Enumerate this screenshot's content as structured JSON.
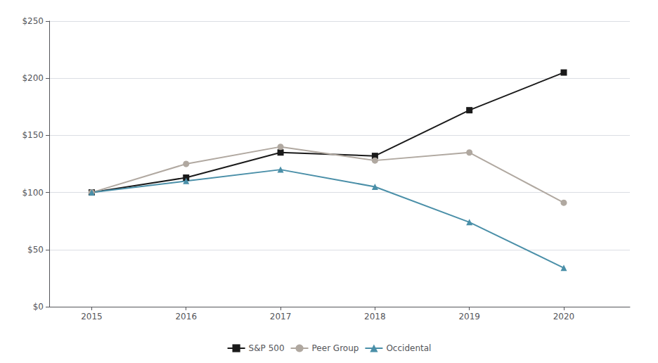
{
  "chart_data": {
    "type": "line",
    "x": [
      2015,
      2016,
      2017,
      2018,
      2019,
      2020
    ],
    "xlim": [
      2014.55,
      2020.7
    ],
    "xticks": [
      2015,
      2016,
      2017,
      2018,
      2019,
      2020
    ],
    "ylim": [
      0,
      250
    ],
    "yticks": [
      {
        "value": 0,
        "label": "$0"
      },
      {
        "value": 50,
        "label": "$50"
      },
      {
        "value": 100,
        "label": "$100"
      },
      {
        "value": 150,
        "label": "$150"
      },
      {
        "value": 200,
        "label": "$200"
      },
      {
        "value": 250,
        "label": "$250"
      }
    ],
    "grid": true,
    "legend": "bottom",
    "series": [
      {
        "name": "S&P 500",
        "color": "#1a1a1a",
        "marker": "square",
        "values": [
          100,
          113,
          135,
          132,
          172,
          205
        ]
      },
      {
        "name": "Peer Group",
        "color": "#b0a8a0",
        "marker": "circle",
        "values": [
          100,
          125,
          140,
          128,
          135,
          91
        ]
      },
      {
        "name": "Occidental",
        "color": "#4a8fa8",
        "marker": "triangle",
        "values": [
          100,
          110,
          120,
          105,
          74,
          34
        ]
      }
    ]
  }
}
